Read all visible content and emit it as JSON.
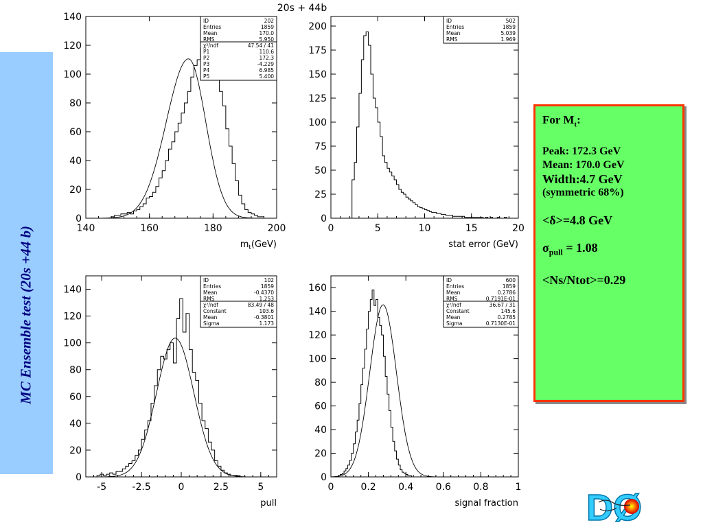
{
  "page_title": "20s +  44b",
  "sidebar": {
    "title": "MC Ensemble test (20s +44 b)"
  },
  "info": {
    "heading_main": "For M",
    "heading_sub": "t",
    "heading_tail": ":",
    "peak": "Peak:  172.3 GeV",
    "mean": "Mean: 170.0 GeV",
    "width": "Width:4.7 GeV",
    "sym": "(symmetric 68%)",
    "delta": "<δ>=4.8 GeV",
    "pull_sigma": "σ",
    "pull_sub": "pull",
    "pull_val": " = 1.08",
    "ns": "<Ns/Ntot>=0.29"
  },
  "logo": {
    "text": "DØ"
  },
  "colors": {
    "sidebar": "#99ccff",
    "info_bg": "#66ff66",
    "info_border": "#ff3300",
    "sidebar_text": "#000080"
  },
  "chart_data": [
    {
      "type": "bar",
      "xlabel": "m_t(GeV)",
      "xlim": [
        140,
        200
      ],
      "ylim": [
        0,
        140
      ],
      "xticks": [
        140,
        160,
        180,
        200
      ],
      "yticks": [
        0,
        20,
        40,
        60,
        80,
        100,
        120,
        140
      ],
      "hist": {
        "x0": 148,
        "bin": 1,
        "values": [
          1,
          2,
          2,
          3,
          3,
          4,
          3,
          5,
          6,
          8,
          10,
          14,
          15,
          18,
          22,
          28,
          33,
          40,
          48,
          53,
          60,
          66,
          73,
          80,
          88,
          98,
          106,
          110,
          118,
          127,
          112,
          120,
          108,
          98,
          88,
          78,
          62,
          50,
          38,
          26,
          16,
          10,
          6,
          4,
          3,
          2,
          1,
          1
        ]
      },
      "fit": {
        "type": "asym_gauss",
        "mean": 172.3,
        "amp": 110.6,
        "sigma_left": 6.985,
        "sigma_right": 5.4
      },
      "stats": [
        [
          "ID",
          "202"
        ],
        [
          "Entries",
          "1859"
        ],
        [
          "Mean",
          "170.0"
        ],
        [
          "RMS",
          "5.950"
        ],
        [
          "χ²/ndf",
          "47.54   /   41"
        ],
        [
          "P1",
          "110.6"
        ],
        [
          "P2",
          "172.3"
        ],
        [
          "P3",
          "-4.229"
        ],
        [
          "P4",
          "6.985"
        ],
        [
          "P5",
          "5.400"
        ]
      ]
    },
    {
      "type": "bar",
      "xlabel": "stat error (GeV)",
      "xlim": [
        0,
        20
      ],
      "ylim": [
        0,
        210
      ],
      "xticks": [
        0,
        5,
        10,
        15,
        20
      ],
      "yticks": [
        0,
        25,
        50,
        75,
        100,
        125,
        150,
        175,
        200
      ],
      "hist": {
        "x0": 2.25,
        "bin": 0.25,
        "values": [
          40,
          58,
          95,
          130,
          165,
          190,
          194,
          180,
          150,
          125,
          115,
          100,
          85,
          65,
          58,
          52,
          48,
          44,
          40,
          35,
          30,
          27,
          25,
          22,
          20,
          18,
          16,
          14,
          12,
          11,
          10,
          9,
          8,
          7,
          6,
          6,
          5,
          5,
          4,
          4,
          3,
          3,
          3,
          2,
          2,
          2,
          2,
          2,
          1,
          1,
          1,
          1,
          1,
          1,
          1,
          1,
          0,
          1,
          0,
          1,
          0,
          0,
          1,
          0,
          0,
          1
        ]
      },
      "stats": [
        [
          "ID",
          "502"
        ],
        [
          "Entries",
          "1859"
        ],
        [
          "Mean",
          "5.039"
        ],
        [
          "RMS",
          "1.969"
        ]
      ]
    },
    {
      "type": "bar",
      "xlabel": "pull",
      "xlim": [
        -6,
        6
      ],
      "ylim": [
        0,
        150
      ],
      "xticks": [
        -5,
        -2.5,
        0,
        2.5,
        5
      ],
      "yticks": [
        0,
        20,
        40,
        60,
        80,
        100,
        120,
        140
      ],
      "hist": {
        "x0": -5.5,
        "bin": 0.2,
        "values": [
          0,
          1,
          2,
          1,
          2,
          3,
          2,
          4,
          4,
          6,
          8,
          10,
          12,
          16,
          20,
          28,
          35,
          42,
          55,
          68,
          80,
          90,
          88,
          95,
          100,
          85,
          118,
          133,
          108,
          122,
          95,
          78,
          72,
          55,
          42,
          36,
          26,
          20,
          12,
          8,
          5,
          3,
          2,
          1,
          1,
          1,
          0,
          0
        ]
      },
      "fit": {
        "type": "gauss",
        "mean": -0.3801,
        "amp": 103.6,
        "sigma": 1.173
      },
      "stats": [
        [
          "ID",
          "102"
        ],
        [
          "Entries",
          "1859"
        ],
        [
          "Mean",
          "-0.4370"
        ],
        [
          "RMS",
          "1.253"
        ],
        [
          "χ²/ndf",
          "83.49   /   48"
        ],
        [
          "Constant",
          "103.6"
        ],
        [
          "Mean",
          "-0.3801"
        ],
        [
          "Sigma",
          "1.173"
        ]
      ]
    },
    {
      "type": "bar",
      "xlabel": "signal fraction",
      "xlim": [
        0,
        1
      ],
      "ylim": [
        0,
        170
      ],
      "xticks": [
        0,
        0.2,
        0.4,
        0.6,
        0.8,
        1
      ],
      "yticks": [
        0,
        20,
        40,
        60,
        80,
        100,
        120,
        140,
        160
      ],
      "hist": {
        "x0": 0.04,
        "bin": 0.01,
        "values": [
          1,
          2,
          3,
          5,
          7,
          10,
          14,
          20,
          28,
          38,
          48,
          62,
          78,
          92,
          108,
          125,
          140,
          150,
          158,
          145,
          150,
          135,
          128,
          120,
          102,
          85,
          70,
          56,
          42,
          30,
          22,
          15,
          10,
          6,
          4,
          3,
          2,
          1,
          1
        ]
      },
      "fit": {
        "type": "gauss",
        "mean": 0.2785,
        "amp": 145.6,
        "sigma": 0.0713
      },
      "stats": [
        [
          "ID",
          "600"
        ],
        [
          "Entries",
          "1859"
        ],
        [
          "Mean",
          "0.2786"
        ],
        [
          "RMS",
          "0.7191E-01"
        ],
        [
          "χ²/ndf",
          "36.67   /   31"
        ],
        [
          "Constant",
          "145.6"
        ],
        [
          "Mean",
          "0.2785"
        ],
        [
          "Sigma",
          "0.7130E-01"
        ]
      ]
    }
  ]
}
